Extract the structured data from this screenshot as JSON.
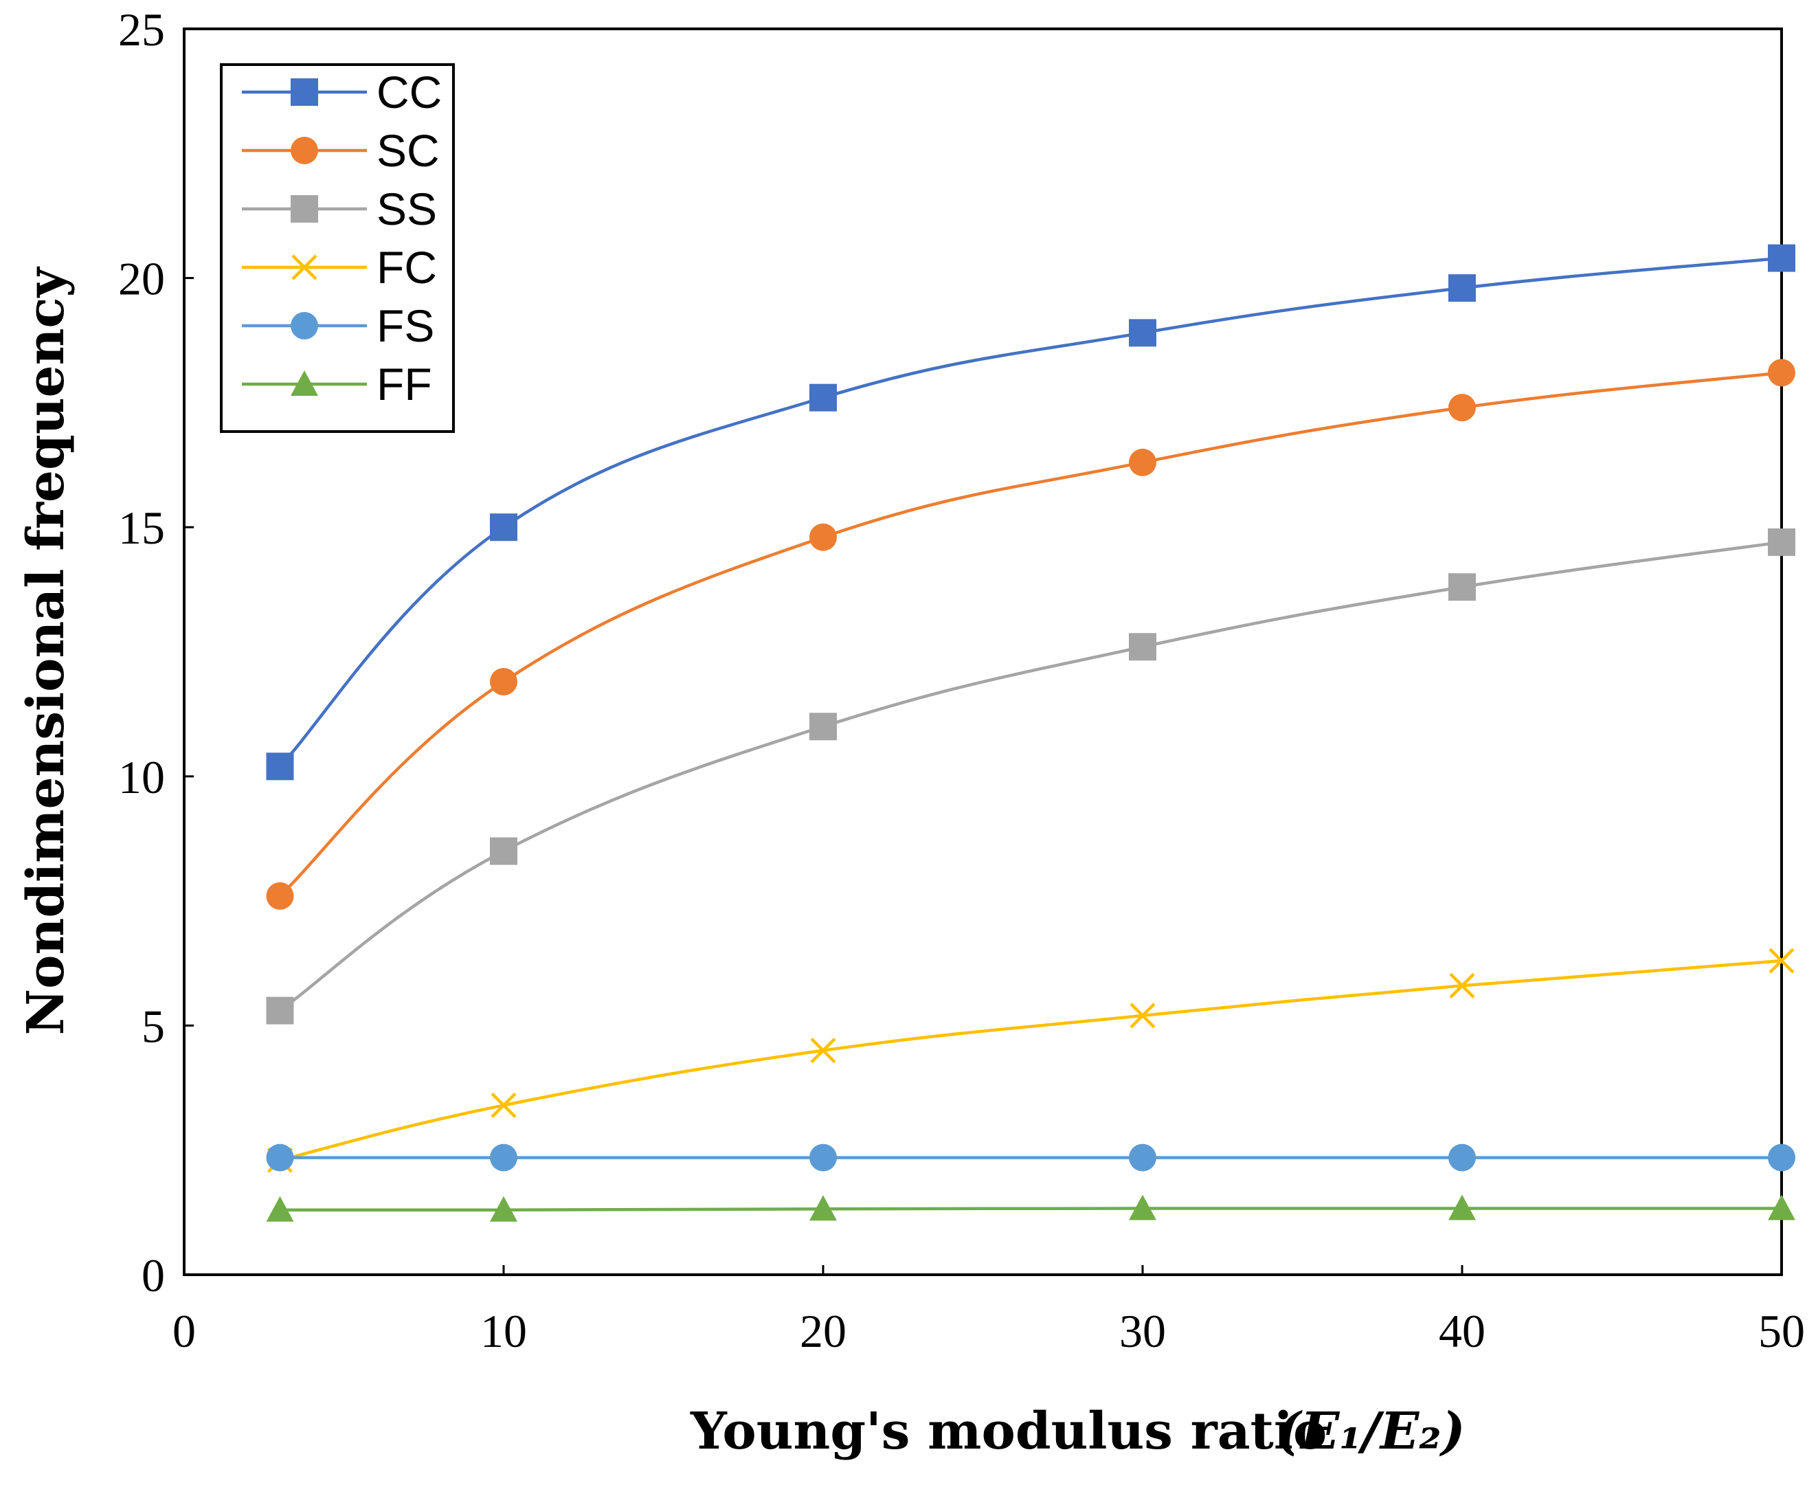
{
  "chart_data": {
    "type": "line",
    "title": "",
    "xlabel": "Young's modulus ratio",
    "xlabel_math": "(E₁/E₂)",
    "ylabel": "Nondimensional frequency",
    "xlim": [
      0,
      50
    ],
    "ylim": [
      0,
      25
    ],
    "xticks": [
      0,
      10,
      20,
      30,
      40,
      50
    ],
    "yticks": [
      0,
      5,
      10,
      15,
      20,
      25
    ],
    "grid": false,
    "legend_position": "top-left",
    "x": [
      3,
      10,
      20,
      30,
      40,
      50
    ],
    "series": [
      {
        "name": "CC",
        "values": [
          10.2,
          15.0,
          17.6,
          18.9,
          19.8,
          20.4
        ],
        "color": "#4472C4",
        "marker": "square"
      },
      {
        "name": "SC",
        "values": [
          7.6,
          11.9,
          14.8,
          16.3,
          17.4,
          18.1
        ],
        "color": "#ED7D31",
        "marker": "circle"
      },
      {
        "name": "SS",
        "values": [
          5.3,
          8.5,
          11.0,
          12.6,
          13.8,
          14.7
        ],
        "color": "#A5A5A5",
        "marker": "square"
      },
      {
        "name": "FC",
        "values": [
          2.3,
          3.4,
          4.5,
          5.2,
          5.8,
          6.3
        ],
        "color": "#FFC000",
        "marker": "x"
      },
      {
        "name": "FS",
        "values": [
          2.35,
          2.35,
          2.35,
          2.35,
          2.35,
          2.35
        ],
        "color": "#5B9BD5",
        "marker": "circle"
      },
      {
        "name": "FF",
        "values": [
          1.3,
          1.3,
          1.32,
          1.33,
          1.33,
          1.33
        ],
        "color": "#70AD47",
        "marker": "triangle"
      }
    ]
  }
}
